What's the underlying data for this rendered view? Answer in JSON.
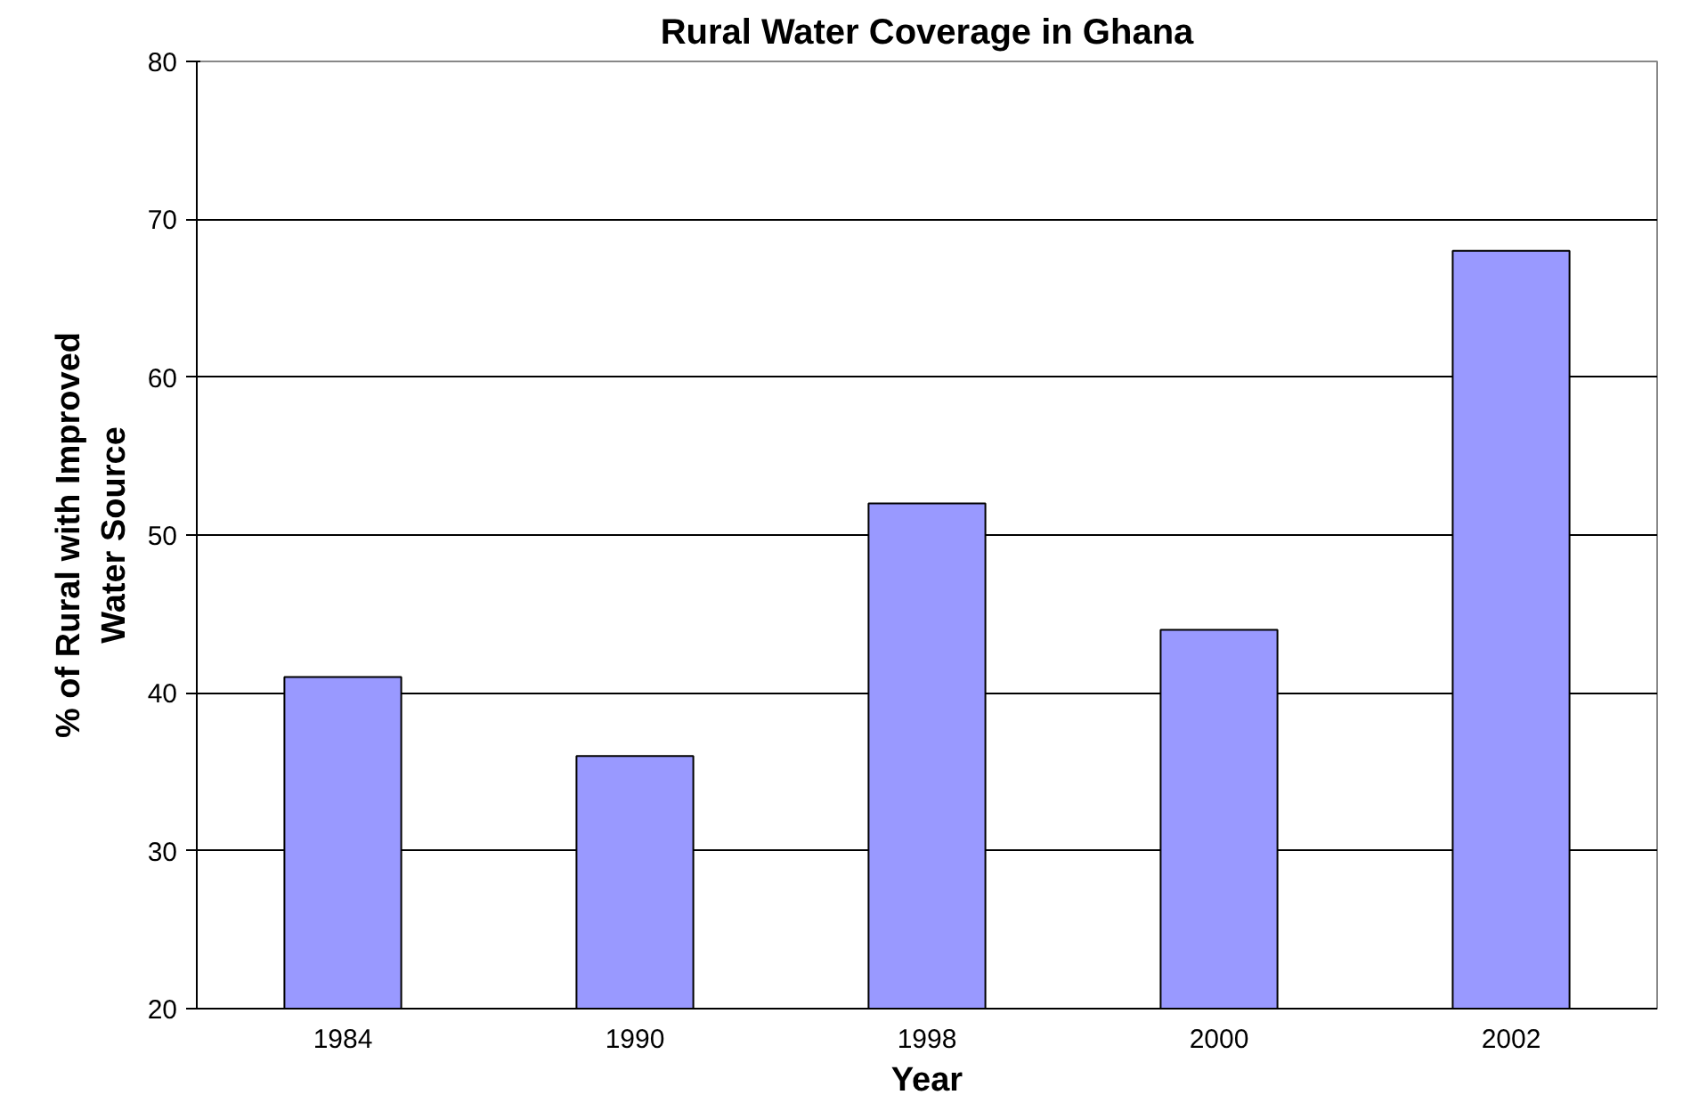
{
  "chart_data": {
    "type": "bar",
    "title": "Rural Water Coverage in Ghana",
    "xlabel": "Year",
    "ylabel": "% of Rural with Improved\nWater Source",
    "categories": [
      "1984",
      "1990",
      "1998",
      "2000",
      "2002"
    ],
    "values": [
      41,
      36,
      52,
      44,
      68
    ],
    "color": "#9999ff",
    "ylim": [
      20,
      80
    ],
    "yticks": [
      20,
      30,
      40,
      50,
      60,
      70,
      80
    ],
    "grid": "y"
  }
}
